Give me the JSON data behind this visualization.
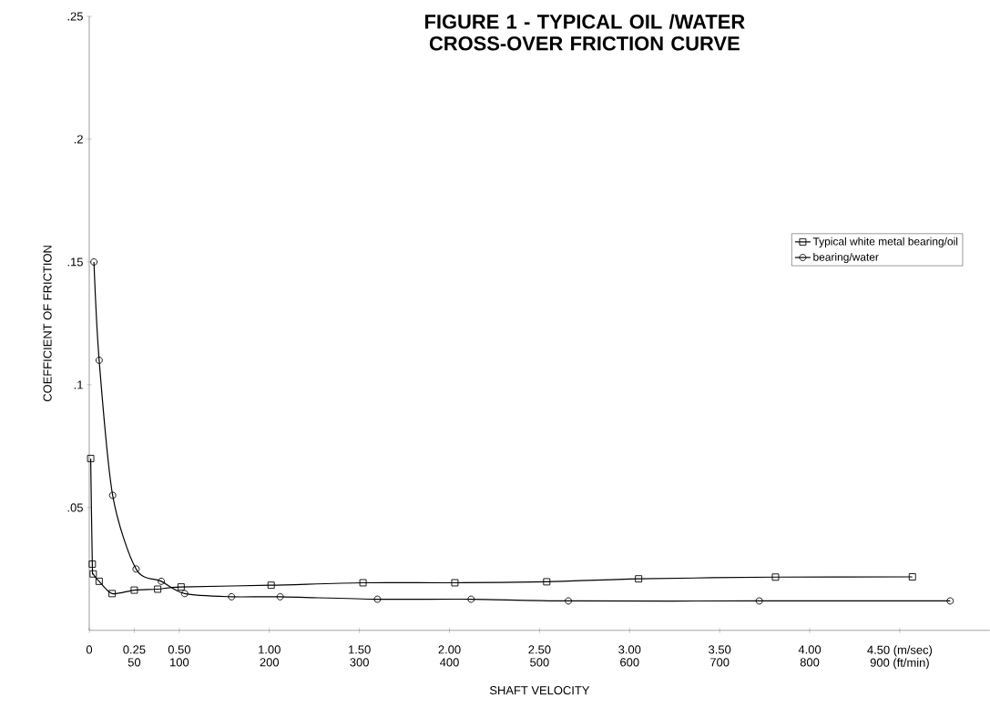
{
  "chart_data": {
    "type": "line",
    "title": "FIGURE 1 - TYPICAL OIL /WATER CROSS-OVER FRICTION CURVE",
    "xlabel": "SHAFT VELOCITY",
    "ylabel": "COEFFICIENT OF FRICTION",
    "xlim": [
      0,
      5
    ],
    "ylim": [
      0,
      0.25
    ],
    "xticks": [
      {
        "value": 0,
        "label": "0"
      },
      {
        "value": 0.25,
        "label": "0.25"
      },
      {
        "value": 0.5,
        "label": "0.50"
      },
      {
        "value": 1,
        "label": "1.00"
      },
      {
        "value": 1.5,
        "label": "1.50"
      },
      {
        "value": 2,
        "label": "2.00"
      },
      {
        "value": 2.5,
        "label": "2.50"
      },
      {
        "value": 3,
        "label": "3.00"
      },
      {
        "value": 3.5,
        "label": "3.50"
      },
      {
        "value": 4,
        "label": "4.00"
      },
      {
        "value": 4.5,
        "label": "4.50 (m/sec)"
      }
    ],
    "x2lim": [
      0,
      1000
    ],
    "x2ticks": [
      50,
      100,
      200,
      300,
      400,
      500,
      600,
      700,
      800,
      {
        "value": 900,
        "label": "900 (ft/min)"
      }
    ],
    "yticks": [
      {
        "value": 0.05,
        "label": ".05"
      },
      {
        "value": 0.1,
        "label": ".1"
      },
      {
        "value": 0.15,
        "label": ".15"
      },
      {
        "value": 0.2,
        "label": ".2"
      },
      {
        "value": 0.25,
        "label": ".25"
      }
    ],
    "legend": "right",
    "grid": false,
    "line_style": "solid",
    "series": [
      {
        "name": "Typical white metal bearing/oil",
        "color": "#000000",
        "marker": "square",
        "x": [
          0.008,
          0.017,
          0.022,
          0.055,
          0.127,
          0.25,
          0.38,
          0.51,
          1.01,
          1.52,
          2.03,
          2.54,
          3.05,
          3.81,
          4.57
        ],
        "values": [
          0.07,
          0.027,
          0.023,
          0.02,
          0.015,
          0.0164,
          0.0168,
          0.0177,
          0.0184,
          0.0194,
          0.0194,
          0.0198,
          0.021,
          0.0217,
          0.0218
        ]
      },
      {
        "name": "bearing/water",
        "color": "#000000",
        "marker": "circle",
        "x": [
          0.026,
          0.055,
          0.13,
          0.26,
          0.4,
          0.53,
          0.79,
          1.06,
          1.6,
          2.12,
          2.66,
          3.72,
          4.78
        ],
        "values": [
          0.15,
          0.11,
          0.055,
          0.025,
          0.02,
          0.015,
          0.0137,
          0.0137,
          0.0127,
          0.0127,
          0.012,
          0.012,
          0.012
        ]
      }
    ]
  }
}
